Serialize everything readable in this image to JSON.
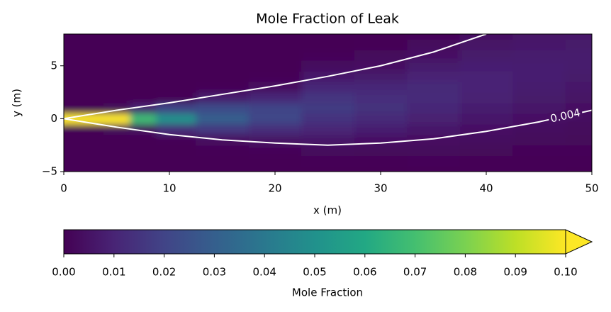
{
  "chart_data": {
    "type": "contour",
    "title": "Mole Fraction of Leak",
    "x_label": "x (m)",
    "y_label": "y (m)",
    "colormap": "viridis",
    "x": [
      0,
      2.5,
      5,
      7.5,
      10,
      15,
      20,
      25,
      30,
      35,
      40,
      45,
      50
    ],
    "y": [
      -5,
      -4,
      -3,
      -2,
      -1,
      0,
      1,
      2,
      3,
      4,
      5,
      6,
      7,
      8
    ],
    "z": [
      [
        0,
        0,
        0,
        0,
        0,
        0.1,
        0,
        0,
        0,
        0,
        0,
        0,
        0,
        0
      ],
      [
        0,
        0,
        0,
        0,
        0,
        0.12,
        0,
        0,
        0,
        0,
        0,
        0,
        0,
        0
      ],
      [
        0,
        0,
        0,
        0,
        0.002,
        0.1,
        0.002,
        0,
        0,
        0,
        0,
        0,
        0,
        0
      ],
      [
        0,
        0,
        0,
        0,
        0.004,
        0.068,
        0.01,
        0,
        0,
        0,
        0,
        0,
        0,
        0
      ],
      [
        0,
        0,
        0,
        0.0005,
        0.013,
        0.05,
        0.02,
        0.001,
        0,
        0,
        0,
        0,
        0,
        0
      ],
      [
        0,
        0,
        0.0008,
        0.004,
        0.016,
        0.03,
        0.023,
        0.008,
        0.001,
        0,
        0,
        0,
        0,
        0
      ],
      [
        0,
        0,
        0.0012,
        0.005,
        0.013,
        0.021,
        0.02,
        0.011,
        0.004,
        0.0008,
        0.0002,
        0,
        0,
        0
      ],
      [
        0,
        0.0009,
        0.0026,
        0.0058,
        0.0104,
        0.0148,
        0.017,
        0.0155,
        0.0113,
        0.0066,
        0.0031,
        0.0012,
        0.0004,
        0.0001
      ],
      [
        0.0003,
        0.0009,
        0.0023,
        0.0047,
        0.0081,
        0.0116,
        0.0138,
        0.0135,
        0.011,
        0.0074,
        0.0042,
        0.002,
        0.0007,
        0.0003
      ],
      [
        0.0005,
        0.0011,
        0.0022,
        0.004,
        0.0064,
        0.0089,
        0.011,
        0.012,
        0.0115,
        0.0096,
        0.0072,
        0.0047,
        0.0027,
        0.0013
      ],
      [
        0.0005,
        0.001,
        0.0018,
        0.0029,
        0.0045,
        0.0063,
        0.008,
        0.0093,
        0.01,
        0.0097,
        0.0087,
        0.0071,
        0.0054,
        0.0037
      ],
      [
        0.0005,
        0.0008,
        0.0014,
        0.0022,
        0.0033,
        0.0045,
        0.0059,
        0.0071,
        0.008,
        0.0085,
        0.0084,
        0.0077,
        0.0066,
        0.0054
      ],
      [
        0.0004,
        0.0007,
        0.0011,
        0.0017,
        0.0024,
        0.0033,
        0.0043,
        0.0053,
        0.0063,
        0.007,
        0.0075,
        0.0075,
        0.0071,
        0.0065
      ]
    ],
    "contour": {
      "level": {
        "value": 0.004,
        "label": "0.004"
      },
      "color": "#ffffff",
      "lines": [
        {
          "x": [
            0,
            5,
            10,
            15,
            20,
            25,
            30,
            35,
            40
          ],
          "y": [
            0,
            0.8,
            1.5,
            2.3,
            3.1,
            4.0,
            5.0,
            6.3,
            8
          ]
        },
        {
          "x": [
            0,
            5,
            10,
            15,
            20,
            25,
            30,
            35,
            40,
            45,
            50
          ],
          "y": [
            0,
            -0.8,
            -1.5,
            -2.0,
            -2.3,
            -2.5,
            -2.3,
            -1.9,
            -1.2,
            -0.3,
            0.8
          ]
        }
      ]
    },
    "xlim": [
      0,
      50
    ],
    "ylim": [
      -5,
      8
    ],
    "xticks": [
      0,
      10,
      20,
      30,
      40,
      50
    ],
    "yticks": [
      {
        "value": -5,
        "label": "−5"
      },
      0,
      5
    ],
    "colorbar": {
      "label": "Mole Fraction",
      "clim": [
        0,
        0.1
      ],
      "extend": "max",
      "ticks": [
        {
          "value": 0,
          "label": "0.00"
        },
        {
          "value": 0.01,
          "label": "0.01"
        },
        {
          "value": 0.02,
          "label": "0.02"
        },
        {
          "value": 0.03,
          "label": "0.03"
        },
        {
          "value": 0.04,
          "label": "0.04"
        },
        {
          "value": 0.05,
          "label": "0.05"
        },
        {
          "value": 0.06,
          "label": "0.06"
        },
        {
          "value": 0.07,
          "label": "0.07"
        },
        {
          "value": 0.08,
          "label": "0.08"
        },
        {
          "value": 0.09,
          "label": "0.09"
        },
        {
          "value": 0.1,
          "label": "0.10"
        }
      ]
    }
  }
}
